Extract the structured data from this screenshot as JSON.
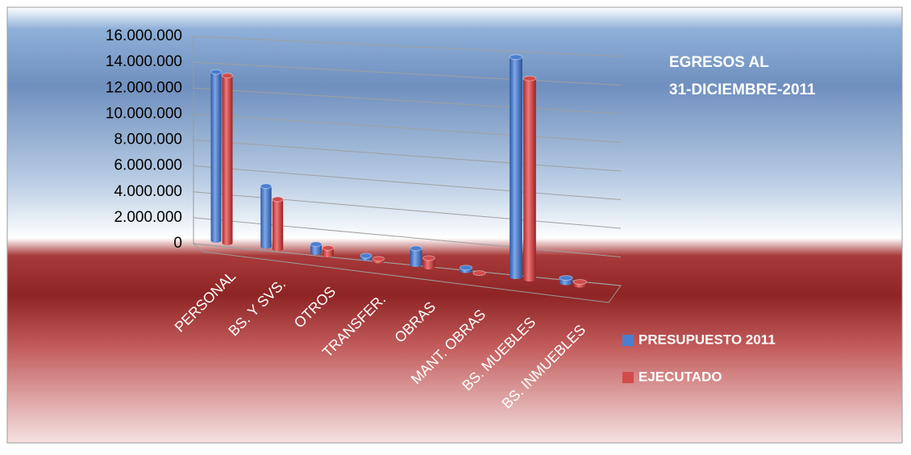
{
  "chart_data": {
    "type": "bar3d",
    "title": [
      "EGRESOS AL",
      "31-DICIEMBRE-2011"
    ],
    "categories": [
      "PERSONAL",
      "BS. Y SVS.",
      "OTROS",
      "TRANSFER.",
      "OBRAS",
      "MANT. OBRAS",
      "BS. MUEBLES",
      "BS. INMUEBLES"
    ],
    "series": [
      {
        "name": "PRESUPUESTO 2011",
        "color": "#4a7fd0",
        "values": [
          13000000,
          4500000,
          600000,
          200000,
          1100000,
          200000,
          14000000,
          300000
        ]
      },
      {
        "name": "EJECUTADO",
        "color": "#d24b4b",
        "values": [
          12900000,
          3700000,
          500000,
          150000,
          600000,
          0,
          12800000,
          200000
        ]
      }
    ],
    "ylim": [
      0,
      16000000
    ],
    "yticks": [
      0,
      {
        "value": 2000000,
        "label": "2.000.000"
      },
      {
        "value": 4000000,
        "label": "4.000.000"
      },
      {
        "value": 6000000,
        "label": "6.000.000"
      },
      {
        "value": 8000000,
        "label": "8.000.000"
      },
      {
        "value": 10000000,
        "label": "10.000.000"
      },
      {
        "value": 12000000,
        "label": "12.000.000"
      },
      {
        "value": 14000000,
        "label": "14.000.000"
      },
      {
        "value": 16000000,
        "label": "16.000.000"
      }
    ],
    "grid": true,
    "legend": "right"
  }
}
